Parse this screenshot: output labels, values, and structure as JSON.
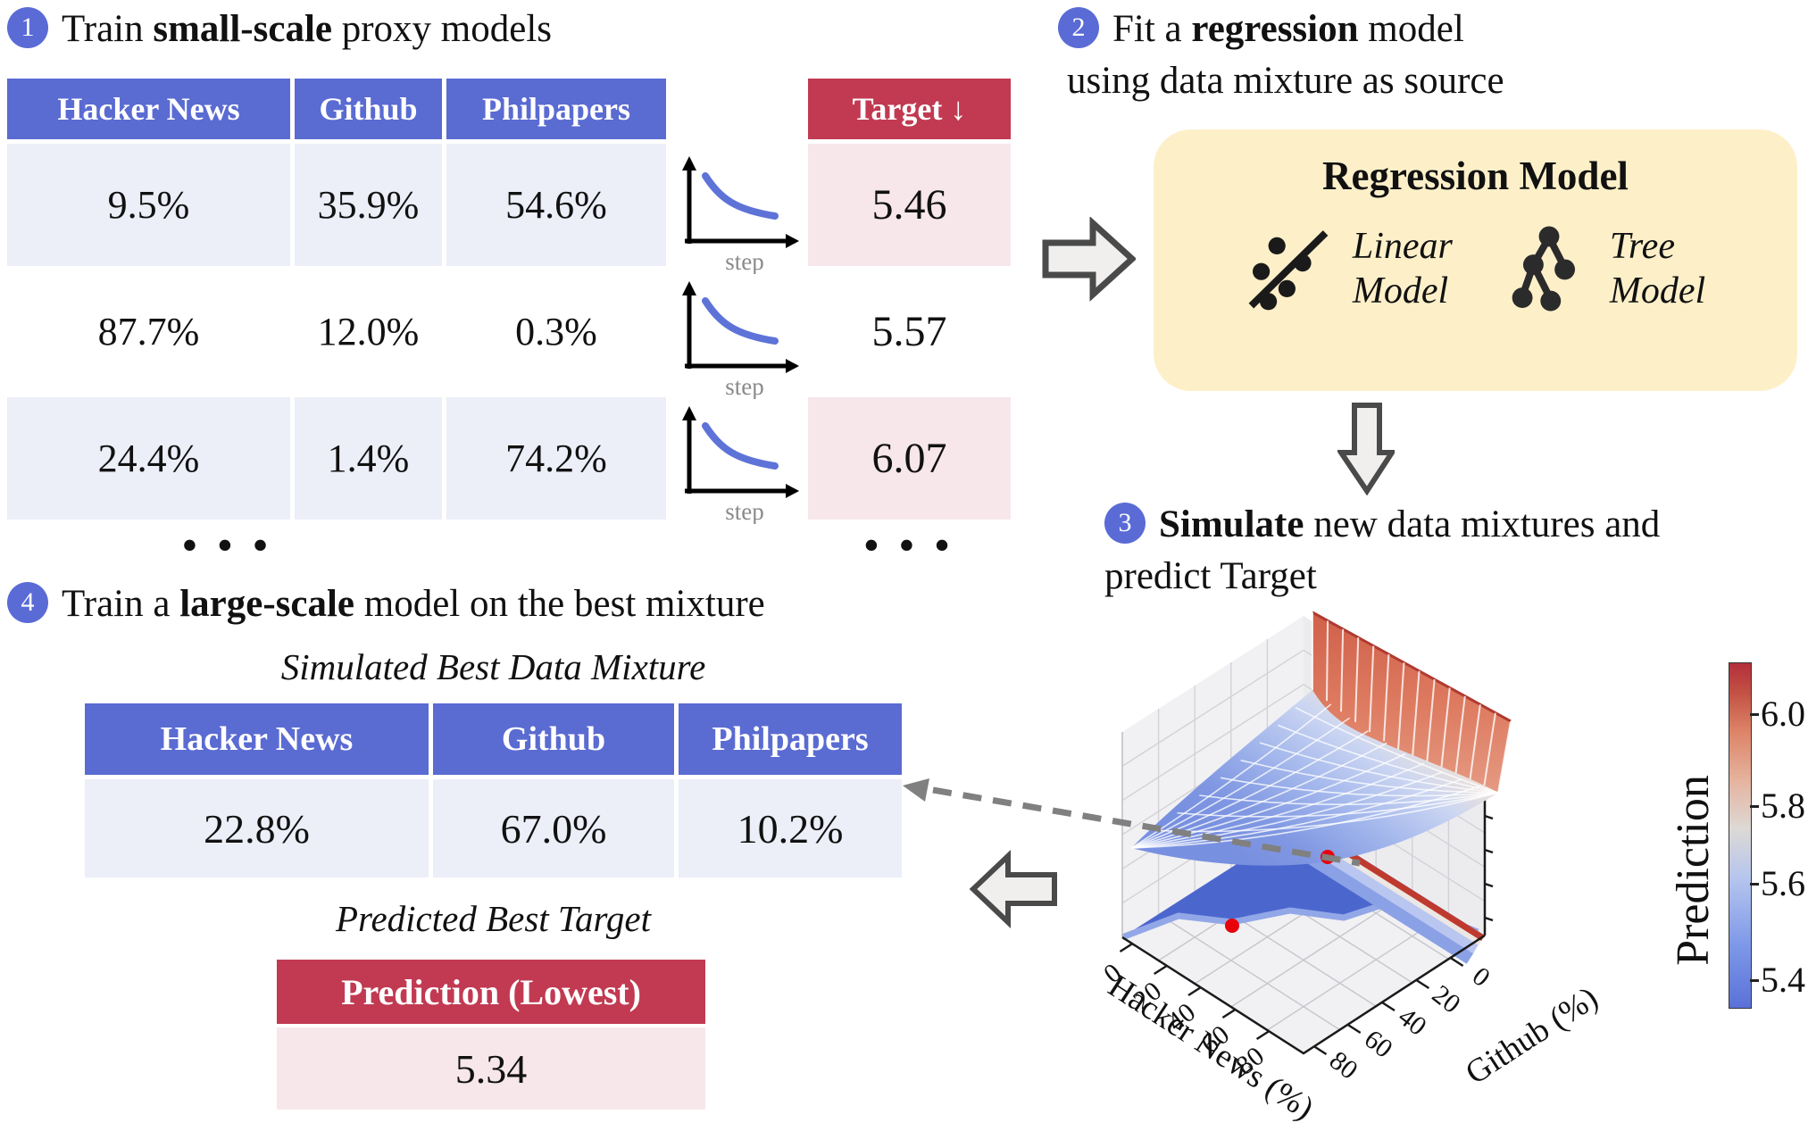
{
  "figure": {
    "step1": {
      "badge": "1",
      "pre": "Train ",
      "bold": "small-scale",
      "post": " proxy models"
    },
    "step2": {
      "badge": "2",
      "pre": "Fit a ",
      "bold": "regression",
      "post": " model",
      "line2": "using data mixture as source"
    },
    "step3": {
      "badge": "3",
      "pre": "",
      "bold": "Simulate",
      "post": " new data mixtures and",
      "line2": "predict Target"
    },
    "step4": {
      "badge": "4",
      "pre": "Train a ",
      "bold": "large-scale",
      "post": " model on the best mixture"
    }
  },
  "proxy_table": {
    "columns": [
      "Hacker News",
      "Github",
      "Philpapers"
    ],
    "rows": [
      [
        "9.5%",
        "35.9%",
        "54.6%"
      ],
      [
        "87.7%",
        "12.0%",
        "0.3%"
      ],
      [
        "24.4%",
        "1.4%",
        "74.2%"
      ]
    ],
    "ellipsis": "• • •"
  },
  "loss_curves": {
    "axis_label": "step"
  },
  "target_table": {
    "header": "Target ↓",
    "values": [
      "5.46",
      "5.57",
      "6.07"
    ],
    "ellipsis": "• • •"
  },
  "regression_box": {
    "title": "Regression Model",
    "models": [
      {
        "icon": "linear-model-icon",
        "name_line1": "Linear",
        "name_line2": "Model"
      },
      {
        "icon": "tree-model-icon",
        "name_line1": "Tree",
        "name_line2": "Model"
      }
    ]
  },
  "simulated_mixture": {
    "title": "Simulated Best Data Mixture",
    "columns": [
      "Hacker News",
      "Github",
      "Philpapers"
    ],
    "row": [
      "22.8%",
      "67.0%",
      "10.2%"
    ]
  },
  "predicted_target": {
    "title": "Predicted Best Target",
    "header": "Prediction (Lowest)",
    "value": "5.34"
  },
  "chart_data": {
    "type": "surface3d+contour",
    "xlabel": "Hacker News (%)",
    "ylabel": "Github (%)",
    "zlabel": "Prediction",
    "x_ticks": [
      "0",
      "20",
      "40",
      "60",
      "80"
    ],
    "y_ticks": [
      "80",
      "60",
      "40",
      "20",
      "0"
    ],
    "colorbar": {
      "label": "Prediction",
      "ticks": [
        "6.0",
        "5.8",
        "5.6",
        "5.4"
      ],
      "range": [
        5.34,
        6.12
      ],
      "colormap": "coolwarm"
    },
    "minimum_marker": {
      "hacker_news_pct": 22.8,
      "github_pct": 67.0,
      "prediction": 5.34
    },
    "surface_summary": "Predicted loss surface over Hacker News % and Github %: blue valley (~5.4) with red optimum dot; red ridge (~6.1) rises along the low-Github back edge; matching filled contour with red dot drawn on the floor plane"
  },
  "colors": {
    "header_blue": "#5a6bd2",
    "row_lavender": "#eceef8",
    "header_red": "#c13a52",
    "row_pink": "#f7e7ea",
    "regression_box_yellow": "#fdf0c9",
    "badge_blue": "#5a6bd6",
    "curve_blue": "#5e73d8",
    "marker_red": "#e8000b"
  }
}
